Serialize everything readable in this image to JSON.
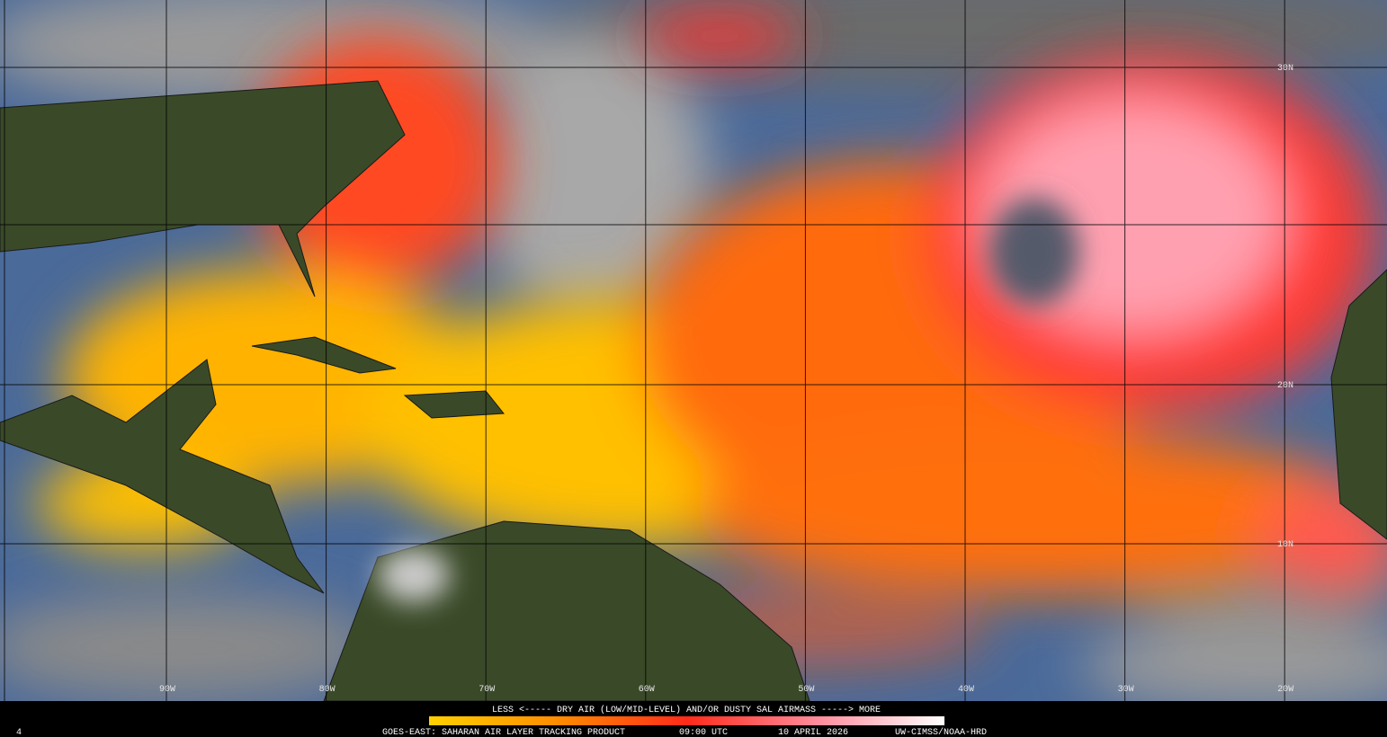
{
  "map": {
    "lat_labels": [
      "30N",
      "20N",
      "10N"
    ],
    "lon_labels": [
      "90W",
      "80W",
      "70W",
      "60W",
      "50W",
      "40W",
      "30W",
      "20W"
    ]
  },
  "legend": {
    "caption": "LESS <----- DRY AIR (LOW/MID-LEVEL) AND/OR DUSTY SAL AIRMASS -----> MORE"
  },
  "footer": {
    "frame": "4",
    "product": "GOES-EAST: SAHARAN AIR LAYER TRACKING PRODUCT",
    "time": "09:00 UTC",
    "date": "10 APRIL 2026",
    "credit": "UW-CIMSS/NOAA-HRD"
  }
}
